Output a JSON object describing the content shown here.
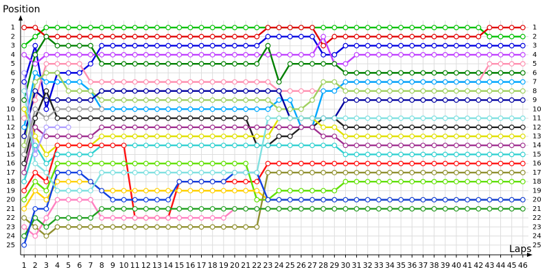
{
  "chart_data": {
    "type": "line",
    "y_label": "Position",
    "x_label": "Laps",
    "y_inverted": true,
    "grid": true,
    "x": [
      1,
      2,
      3,
      4,
      5,
      6,
      7,
      8,
      9,
      10,
      11,
      12,
      13,
      14,
      15,
      16,
      17,
      18,
      19,
      20,
      21,
      22,
      23,
      24,
      25,
      26,
      27,
      28,
      29,
      30,
      31,
      32,
      33,
      34,
      35,
      36,
      37,
      38,
      39,
      40,
      41,
      42,
      43,
      44,
      45,
      46
    ],
    "xlim": [
      0,
      47
    ],
    "xticks": [
      1,
      2,
      3,
      4,
      5,
      6,
      7,
      8,
      9,
      10,
      11,
      12,
      13,
      14,
      15,
      16,
      17,
      18,
      19,
      20,
      21,
      22,
      23,
      24,
      25,
      26,
      27,
      28,
      29,
      30,
      31,
      32,
      33,
      34,
      35,
      36,
      37,
      38,
      39,
      40,
      41,
      42,
      43,
      44,
      45,
      46
    ],
    "ylim": [
      0,
      26
    ],
    "yticks": [
      1,
      2,
      3,
      4,
      5,
      6,
      7,
      8,
      9,
      10,
      11,
      12,
      13,
      14,
      15,
      16,
      17,
      18,
      19,
      20,
      21,
      22,
      23,
      24,
      25
    ],
    "series": [
      {
        "color": "#00c000",
        "values": [
          3,
          2,
          1,
          1,
          1,
          1,
          1,
          1,
          1,
          1,
          1,
          1,
          1,
          1,
          1,
          1,
          1,
          1,
          1,
          1,
          1,
          1,
          1,
          1,
          1,
          1,
          1,
          1,
          1,
          1,
          1,
          1,
          1,
          1,
          1,
          1,
          1,
          1,
          1,
          1,
          1,
          1,
          2,
          2,
          2,
          2
        ]
      },
      {
        "color": "#e00000",
        "values": [
          1,
          1,
          2,
          2,
          2,
          2,
          2,
          2,
          2,
          2,
          2,
          2,
          2,
          2,
          2,
          2,
          2,
          2,
          2,
          2,
          2,
          2,
          1,
          1,
          1,
          1,
          1,
          3,
          2,
          2,
          2,
          2,
          2,
          2,
          2,
          2,
          2,
          2,
          2,
          2,
          2,
          2,
          1,
          1,
          1,
          1
        ]
      },
      {
        "color": "#0000e0",
        "values": [
          7,
          3,
          10,
          6,
          6,
          6,
          5,
          3,
          3,
          3,
          3,
          3,
          3,
          3,
          3,
          3,
          3,
          3,
          3,
          3,
          3,
          3,
          2,
          2,
          2,
          2,
          2,
          4,
          4,
          3,
          3,
          3,
          3,
          3,
          3,
          3,
          3,
          3,
          3,
          3,
          3,
          3,
          3,
          3,
          3,
          3
        ]
      },
      {
        "color": "#c040ff",
        "values": [
          4,
          5,
          4,
          4,
          4,
          4,
          4,
          4,
          4,
          4,
          4,
          4,
          4,
          4,
          4,
          4,
          4,
          4,
          4,
          4,
          4,
          4,
          4,
          4,
          4,
          4,
          4,
          2,
          5,
          5,
          4,
          4,
          4,
          4,
          4,
          4,
          4,
          4,
          4,
          4,
          4,
          4,
          4,
          4,
          4,
          4
        ]
      },
      {
        "color": "#008000",
        "values": [
          9,
          4,
          2,
          3,
          3,
          3,
          3,
          5,
          5,
          5,
          5,
          5,
          5,
          5,
          5,
          5,
          5,
          5,
          5,
          5,
          5,
          5,
          3,
          7,
          5,
          5,
          5,
          5,
          5,
          6,
          6,
          6,
          6,
          6,
          6,
          6,
          6,
          6,
          6,
          6,
          6,
          6,
          6,
          6,
          6,
          6
        ]
      },
      {
        "color": "#ff90b0",
        "values": [
          11,
          9,
          5,
          5,
          5,
          5,
          7,
          7,
          7,
          7,
          7,
          7,
          7,
          7,
          7,
          7,
          7,
          7,
          7,
          7,
          7,
          7,
          7,
          8,
          8,
          8,
          8,
          8,
          8,
          7,
          7,
          7,
          7,
          7,
          7,
          7,
          7,
          7,
          7,
          7,
          7,
          7,
          5,
          5,
          5,
          5
        ]
      },
      {
        "color": "#00a8ff",
        "values": [
          12,
          6,
          7,
          7,
          7,
          7,
          8,
          10,
          10,
          10,
          10,
          10,
          10,
          10,
          10,
          10,
          10,
          10,
          10,
          10,
          10,
          10,
          10,
          9,
          9,
          12,
          12,
          8,
          8,
          7,
          7,
          7,
          7,
          7,
          7,
          7,
          7,
          7,
          7,
          7,
          7,
          7,
          7,
          7,
          7,
          7
        ]
      },
      {
        "color": "#a0d060",
        "values": [
          14,
          7,
          6,
          6,
          8,
          8,
          8,
          9,
          9,
          9,
          9,
          9,
          9,
          9,
          9,
          9,
          9,
          9,
          9,
          9,
          9,
          9,
          9,
          10,
          10,
          10,
          9,
          7,
          7,
          8,
          8,
          8,
          8,
          8,
          8,
          8,
          8,
          8,
          8,
          8,
          8,
          8,
          8,
          8,
          8,
          8
        ]
      },
      {
        "color": "#0000a0",
        "values": [
          13,
          8,
          9,
          9,
          9,
          9,
          9,
          8,
          8,
          8,
          8,
          8,
          8,
          8,
          8,
          8,
          8,
          8,
          8,
          8,
          8,
          8,
          8,
          8,
          11,
          11,
          11,
          11,
          11,
          9,
          9,
          9,
          9,
          9,
          9,
          9,
          9,
          9,
          9,
          9,
          9,
          9,
          9,
          9,
          9,
          9
        ]
      },
      {
        "color": "#202020",
        "values": [
          16,
          11,
          8,
          11,
          11,
          11,
          11,
          11,
          11,
          11,
          11,
          11,
          11,
          11,
          11,
          11,
          11,
          11,
          11,
          11,
          11,
          14,
          14,
          13,
          13,
          12,
          12,
          11,
          11,
          12,
          12,
          12,
          12,
          12,
          12,
          12,
          12,
          12,
          12,
          12,
          12,
          12,
          12,
          12,
          12,
          12
        ]
      },
      {
        "color": "#a03090",
        "values": [
          17,
          12,
          13,
          13,
          13,
          13,
          13,
          12,
          12,
          12,
          12,
          12,
          12,
          12,
          12,
          12,
          12,
          12,
          12,
          12,
          12,
          12,
          12,
          12,
          12,
          12,
          12,
          13,
          13,
          14,
          14,
          14,
          14,
          14,
          14,
          14,
          14,
          14,
          14,
          14,
          14,
          14,
          14,
          14,
          14,
          14
        ]
      },
      {
        "color": "#e0e000",
        "values": [
          10,
          13,
          15,
          14,
          14,
          14,
          14,
          13,
          13,
          13,
          13,
          13,
          13,
          13,
          13,
          13,
          13,
          13,
          13,
          13,
          13,
          13,
          13,
          11,
          11,
          11,
          11,
          12,
          12,
          13,
          13,
          13,
          13,
          13,
          13,
          13,
          13,
          13,
          13,
          13,
          13,
          13,
          13,
          13,
          13,
          13
        ]
      },
      {
        "color": "#30d0d0",
        "values": [
          18,
          14,
          16,
          15,
          15,
          15,
          15,
          14,
          14,
          14,
          14,
          14,
          14,
          14,
          14,
          14,
          14,
          14,
          14,
          14,
          14,
          14,
          14,
          14,
          14,
          14,
          14,
          14,
          14,
          15,
          15,
          15,
          15,
          15,
          15,
          15,
          15,
          15,
          15,
          15,
          15,
          15,
          15,
          15,
          15,
          15
        ]
      },
      {
        "color": "#ff1010",
        "values": [
          19,
          17,
          18,
          14,
          14,
          14,
          14,
          14,
          14,
          14,
          22,
          22,
          22,
          22,
          18,
          18,
          18,
          18,
          18,
          18,
          18,
          18,
          16,
          16,
          16,
          16,
          16,
          16,
          16,
          16,
          16,
          16,
          16,
          16,
          16,
          16,
          16,
          16,
          16,
          16,
          16,
          16,
          16,
          16,
          16,
          16
        ]
      },
      {
        "color": "#60e000",
        "values": [
          20,
          18,
          19,
          16,
          16,
          16,
          16,
          16,
          16,
          16,
          16,
          16,
          16,
          16,
          16,
          16,
          16,
          16,
          16,
          16,
          16,
          20,
          20,
          19,
          19,
          19,
          19,
          19,
          19,
          18,
          18,
          18,
          18,
          18,
          18,
          18,
          18,
          18,
          18,
          18,
          18,
          18,
          18,
          18,
          18,
          18
        ]
      },
      {
        "color": "#ffd000",
        "values": [
          21,
          19,
          20,
          18,
          18,
          18,
          18,
          19,
          19,
          19,
          19,
          19,
          19,
          19,
          19,
          19,
          19,
          19,
          19,
          19,
          19,
          19,
          20,
          20,
          20,
          20,
          20,
          20,
          20,
          20,
          20,
          20,
          20,
          20,
          20,
          20,
          20,
          20,
          20,
          20,
          20,
          20,
          20,
          20,
          20,
          20
        ]
      },
      {
        "color": "#909030",
        "values": [
          22,
          23,
          24,
          23,
          23,
          23,
          23,
          23,
          23,
          23,
          23,
          23,
          23,
          23,
          23,
          23,
          23,
          23,
          23,
          23,
          23,
          23,
          17,
          17,
          17,
          17,
          17,
          17,
          17,
          17,
          17,
          17,
          17,
          17,
          17,
          17,
          17,
          17,
          17,
          17,
          17,
          17,
          17,
          17,
          17,
          17
        ]
      },
      {
        "color": "#ff80c0",
        "values": [
          23,
          24,
          22,
          20,
          20,
          20,
          20,
          22,
          22,
          22,
          22,
          22,
          22,
          22,
          22,
          22,
          22,
          22,
          22,
          21,
          21,
          21,
          21,
          21,
          21,
          21,
          21,
          21,
          21,
          21,
          21,
          21,
          21,
          21,
          21,
          21,
          21,
          21,
          21,
          21,
          21,
          21,
          21,
          21,
          21,
          21
        ]
      },
      {
        "color": "#20a020",
        "values": [
          24,
          22,
          23,
          22,
          22,
          22,
          22,
          21,
          21,
          21,
          21,
          21,
          21,
          21,
          21,
          21,
          21,
          21,
          21,
          21,
          21,
          21,
          21,
          21,
          21,
          21,
          21,
          21,
          21,
          21,
          21,
          21,
          21,
          21,
          21,
          21,
          21,
          21,
          21,
          21,
          21,
          21,
          21,
          21,
          21,
          21
        ]
      },
      {
        "color": "#1040e0",
        "values": [
          25,
          21,
          21,
          17,
          17,
          17,
          18,
          19,
          20,
          20,
          20,
          20,
          20,
          20,
          18,
          18,
          18,
          18,
          18,
          17,
          17,
          17,
          20,
          20,
          20,
          20,
          20,
          20,
          20,
          20,
          20,
          20,
          20,
          20,
          20,
          20,
          20,
          20,
          20,
          20,
          20,
          20,
          20,
          20,
          20,
          20
        ]
      },
      {
        "color": "#80e0e0",
        "values": [
          8,
          16,
          17,
          19,
          19,
          19,
          19,
          17,
          17,
          17,
          17,
          17,
          17,
          17,
          17,
          17,
          17,
          17,
          17,
          17,
          17,
          17,
          11,
          11,
          11,
          11,
          11,
          11,
          11,
          11,
          11,
          11,
          11,
          11,
          11,
          11,
          11,
          11,
          11,
          11,
          11,
          11,
          11,
          11,
          11,
          11
        ]
      },
      {
        "color": "#b0a0ff",
        "values": [
          6,
          15,
          12,
          12,
          12,
          null,
          null,
          null,
          null,
          null,
          null,
          null,
          null,
          null,
          null,
          null,
          null,
          null,
          null,
          null,
          null,
          null,
          null,
          null,
          null,
          null,
          null,
          null,
          null,
          null,
          null,
          null,
          null,
          null,
          null,
          null,
          null,
          null,
          null,
          null,
          null,
          null,
          null,
          null,
          null,
          null
        ]
      },
      {
        "color": "#a0a0a0",
        "values": [
          15,
          10,
          11,
          10,
          10,
          10,
          10,
          10,
          null,
          null,
          null,
          null,
          null,
          null,
          null,
          null,
          null,
          null,
          null,
          null,
          null,
          null,
          null,
          null,
          null,
          null,
          null,
          null,
          null,
          null,
          null,
          null,
          null,
          null,
          null,
          null,
          null,
          null,
          null,
          null,
          null,
          null,
          null,
          null,
          null,
          null
        ]
      }
    ]
  }
}
